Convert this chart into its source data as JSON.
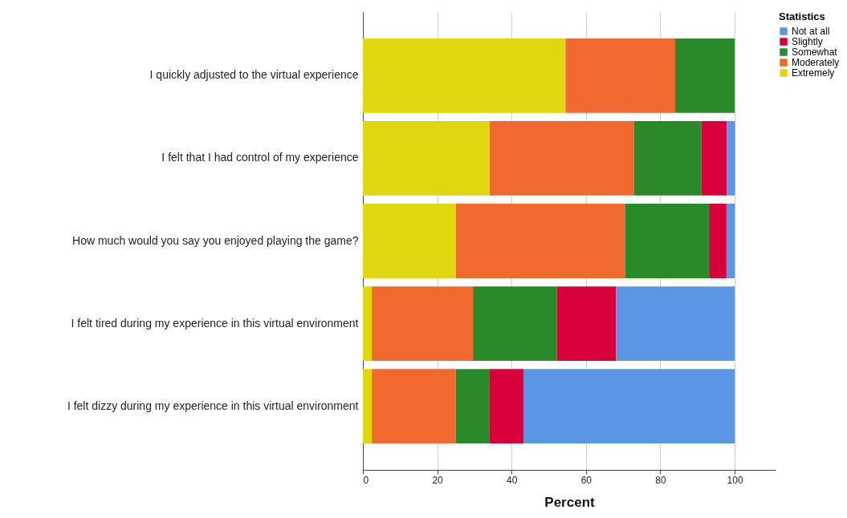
{
  "chart_data": {
    "type": "bar",
    "orientation": "horizontal",
    "stacked": true,
    "xlabel": "Percent",
    "legend_title": "Statistics",
    "legend": "top right",
    "grid": "x",
    "categories": [
      "I quickly adjusted to the virtual experience",
      "I felt that I had control of my experience",
      "How much would you say you enjoyed playing the game?",
      "I felt tired during my experience in this virtual environment",
      "I felt dizzy during my experience in this virtual environment"
    ],
    "series": [
      {
        "name": "Extremely",
        "color": "#e1d711",
        "values": [
          54.5,
          34.1,
          25.0,
          2.4,
          2.4
        ]
      },
      {
        "name": "Moderately",
        "color": "#f2692f",
        "values": [
          29.5,
          38.8,
          45.5,
          27.2,
          22.6
        ]
      },
      {
        "name": "Somewhat",
        "color": "#2a8a2a",
        "values": [
          16.0,
          18.1,
          22.6,
          22.6,
          9.1
        ]
      },
      {
        "name": "Slightly",
        "color": "#d8003a",
        "values": [
          null,
          6.9,
          4.7,
          15.9,
          9.1
        ]
      },
      {
        "name": "Not at all",
        "color": "#5a96e3",
        "values": [
          null,
          2.2,
          2.2,
          31.9,
          56.8
        ]
      }
    ],
    "xlim": [
      0,
      111
    ],
    "xticks": [
      0,
      20,
      40,
      60,
      80,
      100
    ]
  }
}
